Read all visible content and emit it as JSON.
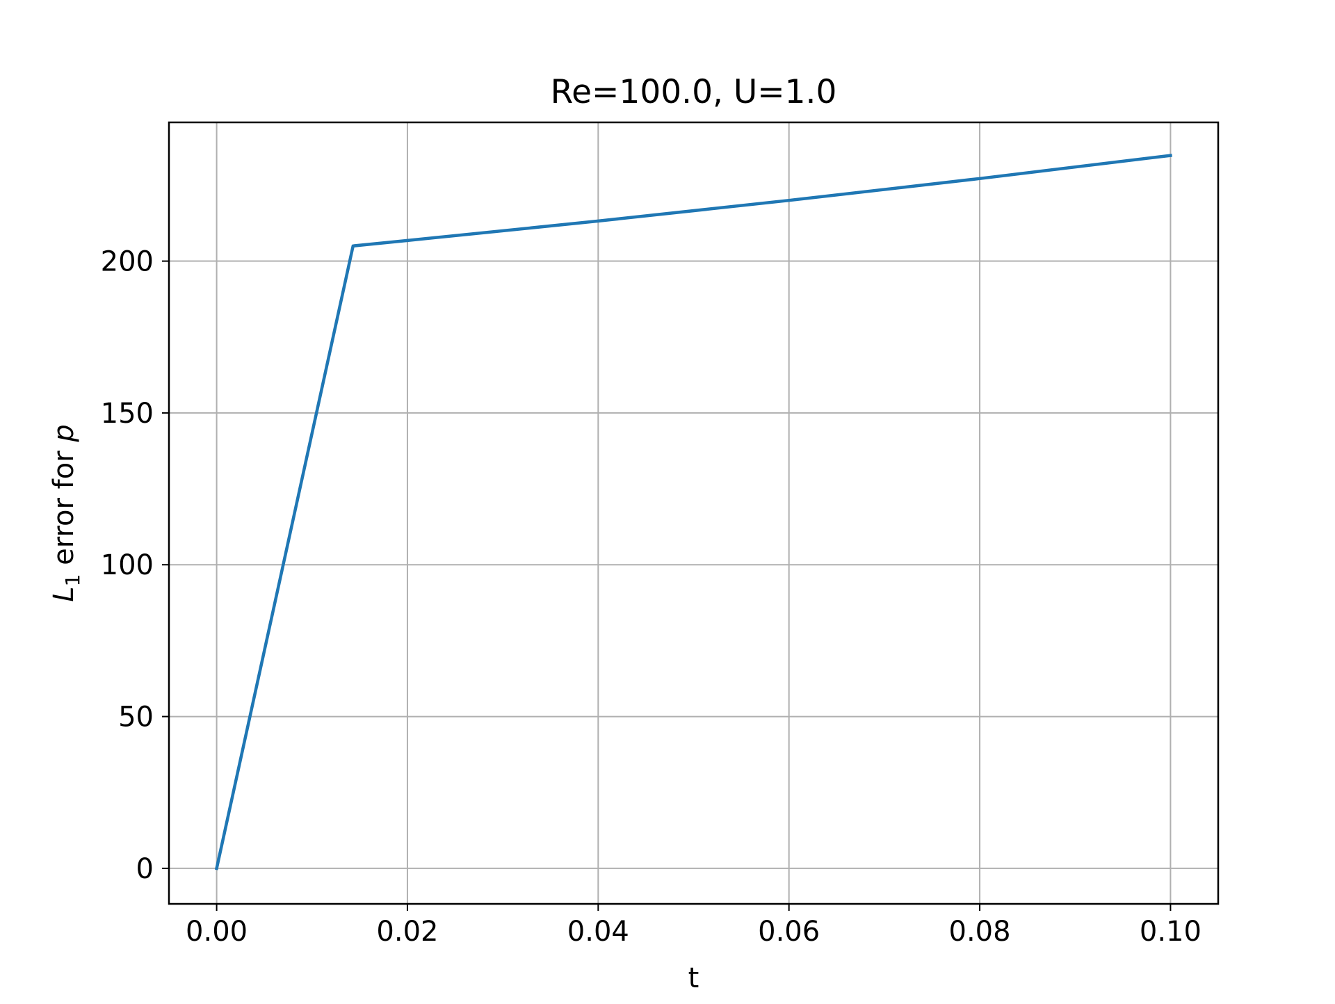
{
  "chart_data": {
    "type": "line",
    "title": "Re=100.0, U=1.0",
    "xlabel": "t",
    "ylabel": {
      "symbol": "L",
      "subscript": "1",
      "text": " error for ",
      "variable": "p"
    },
    "xlim": [
      -0.005,
      0.105
    ],
    "ylim": [
      -11.7,
      245.7
    ],
    "x_ticks": [
      0.0,
      0.02,
      0.04,
      0.06,
      0.08,
      0.1
    ],
    "x_tick_labels": [
      "0.00",
      "0.02",
      "0.04",
      "0.06",
      "0.08",
      "0.10"
    ],
    "y_ticks": [
      0,
      50,
      100,
      150,
      200
    ],
    "y_tick_labels": [
      "0",
      "50",
      "100",
      "150",
      "200"
    ],
    "grid": true,
    "series": [
      {
        "color": "#1f77b4",
        "x": [
          0.0,
          0.0143,
          0.02,
          0.04,
          0.06,
          0.08,
          0.1
        ],
        "y": [
          0.0,
          205.0,
          206.8,
          213.2,
          220.0,
          227.2,
          234.8
        ]
      }
    ]
  }
}
